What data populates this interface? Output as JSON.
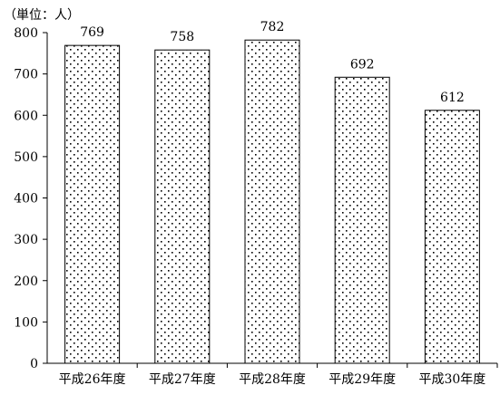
{
  "chart_data": {
    "type": "bar",
    "unit_label": "（単位：人）",
    "categories": [
      "平成26年度",
      "平成27年度",
      "平成28年度",
      "平成29年度",
      "平成30年度"
    ],
    "values": [
      769,
      758,
      782,
      692,
      612
    ],
    "data_labels": [
      "769",
      "758",
      "782",
      "692",
      "612"
    ],
    "ylim": [
      0,
      800
    ],
    "yticks": [
      0,
      100,
      200,
      300,
      400,
      500,
      600,
      700,
      800
    ],
    "ytick_labels": [
      "0",
      "100",
      "200",
      "300",
      "400",
      "500",
      "600",
      "700",
      "800"
    ],
    "grid": false,
    "bar_pattern": "dotted",
    "colors": {
      "bar_fill": "#ffffff",
      "bar_dots": "#000000",
      "axis": "#000000"
    }
  }
}
